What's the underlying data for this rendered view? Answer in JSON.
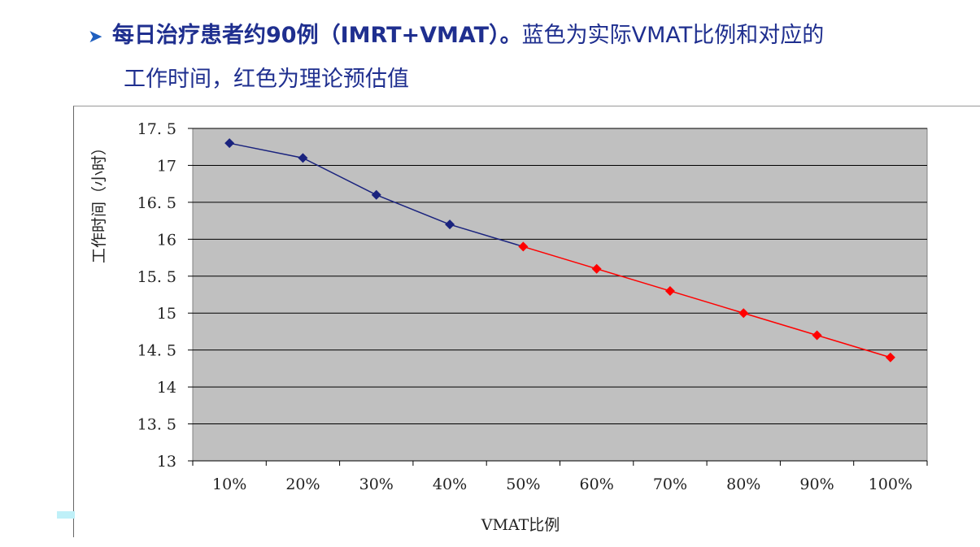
{
  "heading": {
    "bullet_icon": "arrow-bullet-icon",
    "bold_part": "每日治疗患者约90例（IMRT+VMAT）。",
    "normal_part": "蓝色为实际VMAT比例和对应的",
    "line2": "工作时间，红色为理论预估值"
  },
  "chart_data": {
    "type": "line",
    "title": "",
    "xlabel": "VMAT比例",
    "ylabel": "工作时间（小时）",
    "categories": [
      "10%",
      "20%",
      "30%",
      "40%",
      "50%",
      "60%",
      "70%",
      "80%",
      "90%",
      "100%"
    ],
    "values": [
      17.3,
      17.1,
      16.6,
      16.2,
      15.9,
      15.6,
      15.3,
      15.0,
      14.7,
      14.4
    ],
    "actual_range": [
      "10%",
      "50%"
    ],
    "estimated_range": [
      "50%",
      "100%"
    ],
    "colors": {
      "actual": "#1a237e",
      "estimated": "#ff0000",
      "plot_bg": "#c0c0c0",
      "grid": "#000000"
    },
    "ylim": [
      13,
      17.5
    ],
    "yticks": [
      "13",
      "13.5",
      "14",
      "14.5",
      "15",
      "15.5",
      "16",
      "16.5",
      "17",
      "17.5"
    ],
    "grid": true,
    "legend": "none"
  }
}
